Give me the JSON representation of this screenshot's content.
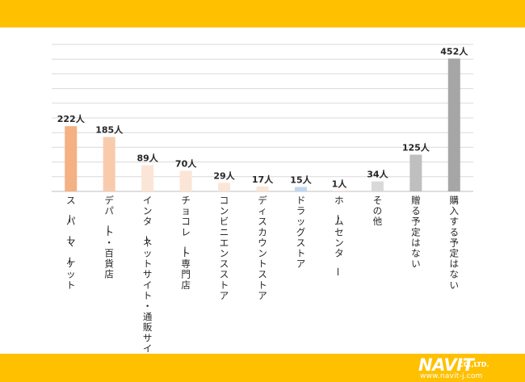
{
  "colors": {
    "band": "#ffc000",
    "grid": "#d9d9d9",
    "axis": "#bfbfbf",
    "label_text": "#262626"
  },
  "chart_data": {
    "type": "bar",
    "categories": [
      "スーパーマーケット",
      "デパート・百貨店",
      "インターネットサイト・通販サイト",
      "チョコレート専門店",
      "コンビニエンスストア",
      "ディスカウントストア",
      "ドラッグストア",
      "ホームセンター",
      "その他",
      "贈る予定はない",
      "購入する予定はない"
    ],
    "values": [
      222,
      185,
      89,
      70,
      29,
      17,
      15,
      1,
      34,
      125,
      452
    ],
    "data_labels": [
      "222人",
      "185人",
      "89人",
      "70人",
      "29人",
      "17人",
      "15人",
      "1人",
      "34人",
      "125人",
      "452人"
    ],
    "bar_colors": [
      "#f4b183",
      "#f8cbad",
      "#fbe5d6",
      "#fbe5d6",
      "#fbe5d6",
      "#fbe5d6",
      "#bdd7ee",
      "#fbe5d6",
      "#d9d9d9",
      "#bfbfbf",
      "#a6a6a6"
    ],
    "ylim": [
      0,
      500
    ],
    "grid": true,
    "title": "",
    "xlabel": "",
    "ylabel": ""
  },
  "logo": {
    "main": "NAVIT",
    "suffix": "CO.,LTD.",
    "url": "www.navit-j.com"
  }
}
